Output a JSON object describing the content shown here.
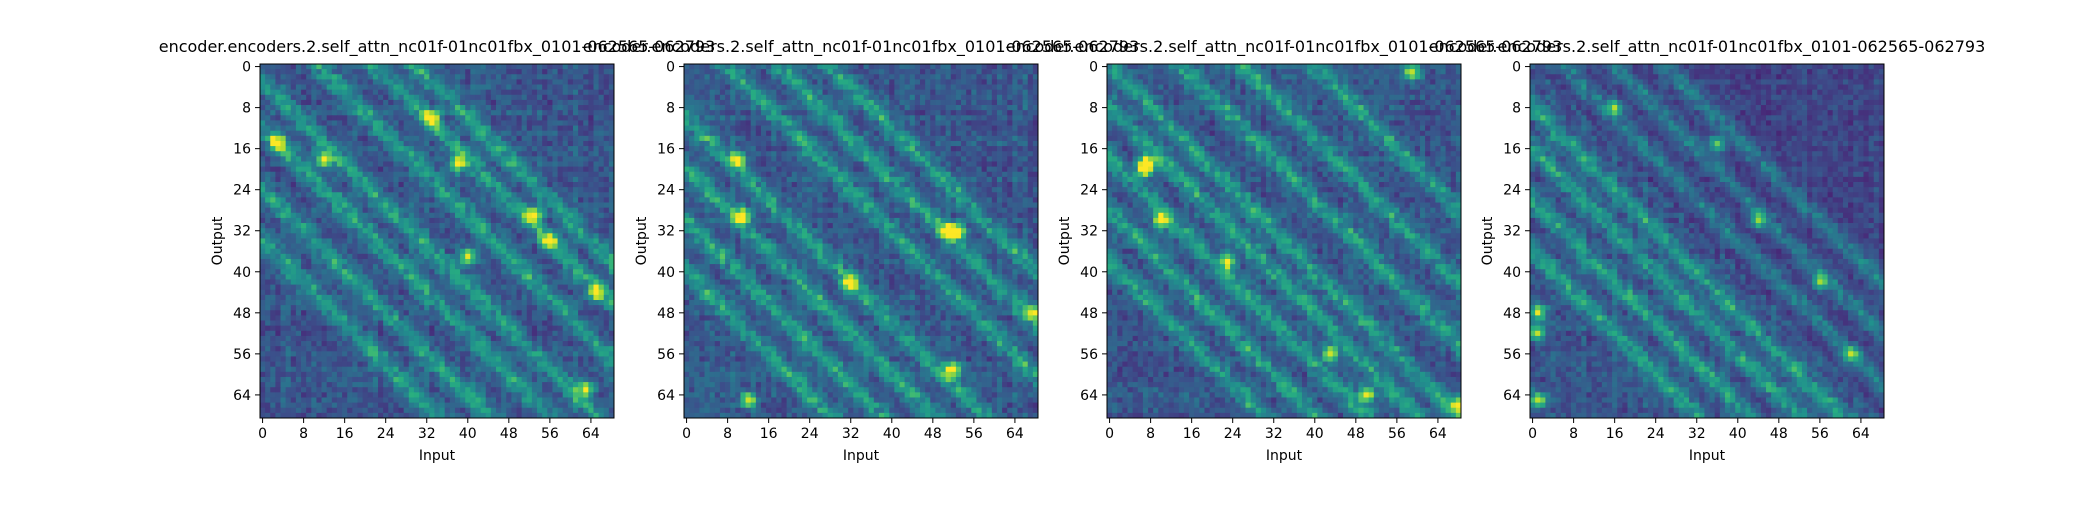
{
  "chart_data": [
    {
      "type": "heatmap",
      "title": "encoder.encoders.2.self_attn_nc01f-01nc01fbx_0101-062565-062793",
      "xlabel": "Input",
      "ylabel": "Output",
      "xticks": [
        0,
        8,
        16,
        24,
        32,
        40,
        48,
        56,
        64
      ],
      "yticks": [
        0,
        8,
        16,
        24,
        32,
        40,
        48,
        56,
        64
      ],
      "xlim": [
        0,
        69
      ],
      "ylim": [
        0,
        69
      ],
      "colormap": "viridis",
      "pattern": {
        "diagonals": [
          -34,
          -24,
          -12,
          -3,
          11,
          22,
          30
        ],
        "bright_spots": [
          [
            3,
            15
          ],
          [
            12,
            18
          ],
          [
            33,
            10
          ],
          [
            38,
            19
          ],
          [
            53,
            29
          ],
          [
            56,
            34
          ],
          [
            65,
            44
          ],
          [
            63,
            63
          ],
          [
            40,
            37
          ]
        ],
        "triangle": "none",
        "seed": 11
      }
    },
    {
      "type": "heatmap",
      "title": "encoder.encoders.2.self_attn_nc01f-01nc01fbx_0101-062565-062793",
      "xlabel": "Input",
      "ylabel": "Output",
      "xticks": [
        0,
        8,
        16,
        24,
        32,
        40,
        48,
        56,
        64
      ],
      "yticks": [
        0,
        8,
        16,
        24,
        32,
        40,
        48,
        56,
        64
      ],
      "xlim": [
        0,
        69
      ],
      "ylim": [
        0,
        69
      ],
      "colormap": "viridis",
      "pattern": {
        "diagonals": [
          -40,
          -30,
          -20,
          -10,
          8,
          18,
          28
        ],
        "bright_spots": [
          [
            11,
            29
          ],
          [
            10,
            18
          ],
          [
            51,
            32
          ],
          [
            53,
            32
          ],
          [
            68,
            48
          ],
          [
            52,
            59
          ],
          [
            12,
            65
          ],
          [
            32,
            42
          ]
        ],
        "triangle": "none",
        "seed": 23
      }
    },
    {
      "type": "heatmap",
      "title": "encoder.encoders.2.self_attn_nc01f-01nc01fbx_0101-062565-062793",
      "xlabel": "Input",
      "ylabel": "Output",
      "xticks": [
        0,
        8,
        16,
        24,
        32,
        40,
        48,
        56,
        64
      ],
      "yticks": [
        0,
        8,
        16,
        24,
        32,
        40,
        48,
        56,
        64
      ],
      "xlim": [
        0,
        69
      ],
      "ylim": [
        0,
        69
      ],
      "colormap": "viridis",
      "pattern": {
        "diagonals": [
          -38,
          -28,
          -18,
          -8,
          0,
          14,
          26,
          40
        ],
        "bright_spots": [
          [
            7,
            19
          ],
          [
            7,
            20
          ],
          [
            43,
            56
          ],
          [
            50,
            64
          ],
          [
            59,
            1
          ],
          [
            68,
            66
          ],
          [
            23,
            38
          ],
          [
            10,
            30
          ]
        ],
        "triangle": "none",
        "seed": 37
      }
    },
    {
      "type": "heatmap",
      "title": "encoder.encoders.2.self_attn_nc01f-01nc01fbx_0101-062565-062793",
      "xlabel": "Input",
      "ylabel": "Output",
      "xticks": [
        0,
        8,
        16,
        24,
        32,
        40,
        48,
        56,
        64
      ],
      "yticks": [
        0,
        8,
        16,
        24,
        32,
        40,
        48,
        56,
        64
      ],
      "xlim": [
        0,
        69
      ],
      "ylim": [
        0,
        69
      ],
      "colormap": "viridis",
      "pattern": {
        "diagonals": [
          -36,
          -26,
          -16,
          -8,
          6,
          16,
          26
        ],
        "bright_spots": [
          [
            1,
            48
          ],
          [
            1,
            52
          ],
          [
            1,
            65
          ],
          [
            36,
            15
          ],
          [
            62,
            56
          ],
          [
            16,
            8
          ],
          [
            44,
            30
          ],
          [
            56,
            42
          ]
        ],
        "triangle": "upper-dim",
        "seed": 53
      }
    }
  ]
}
